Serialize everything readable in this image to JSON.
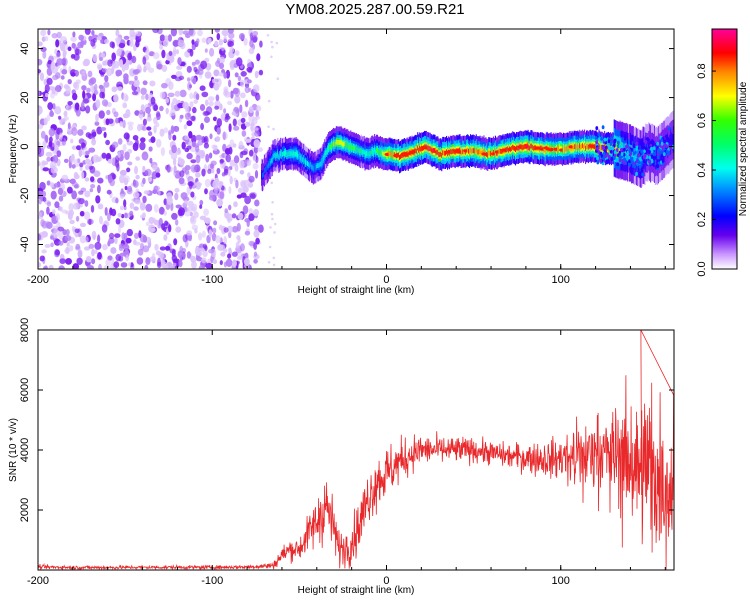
{
  "title": "YM08.2025.287.00.59.R21",
  "chart_data": [
    {
      "type": "heatmap",
      "xlabel": "Height of straight line (km)",
      "ylabel": "Frequency (Hz)",
      "xlim": [
        -200,
        165
      ],
      "ylim": [
        -50,
        48
      ],
      "xticks": [
        -200,
        -100,
        0,
        100
      ],
      "yticks": [
        -40,
        -20,
        0,
        20,
        40
      ],
      "xtick_labels": [
        "-200",
        "-100",
        "0",
        "100"
      ],
      "ytick_labels": [
        "-40",
        "-20",
        "0",
        "20",
        "40"
      ],
      "colorbar": {
        "label": "Normalized spectral amplitude",
        "range": [
          0,
          0.97
        ],
        "ticks": [
          0,
          0.2,
          0.4,
          0.6,
          0.8
        ],
        "tick_labels": [
          "0.0",
          "0.2",
          "0.4",
          "0.6",
          "0.8"
        ],
        "colormap": "rainbow (purple-blue-cyan-green-yellow-red-magenta)"
      },
      "noise_region_x": [
        -200,
        -72
      ],
      "signal_trace": {
        "x": [
          -72,
          -65,
          -58,
          -52,
          -47,
          -42,
          -38,
          -33,
          -28,
          -22,
          -18,
          -12,
          -6,
          0,
          8,
          15,
          22,
          30,
          40,
          50,
          60,
          70,
          80,
          90,
          100,
          110,
          120,
          130,
          138,
          145,
          150,
          155,
          160,
          165
        ],
        "frequency": [
          -12,
          -4,
          -3,
          -3,
          -6,
          -9,
          -7,
          0,
          2,
          0,
          -1,
          -3,
          -2,
          -3,
          -4,
          -2,
          0,
          -3,
          -2,
          -2,
          -3,
          -1,
          0,
          -1,
          -1,
          0,
          0,
          -1,
          -2,
          -5,
          -2,
          -4,
          0,
          3
        ],
        "amplitude": [
          0.3,
          0.45,
          0.5,
          0.5,
          0.45,
          0.4,
          0.45,
          0.55,
          0.7,
          0.6,
          0.55,
          0.5,
          0.55,
          0.75,
          0.85,
          0.85,
          0.9,
          0.85,
          0.85,
          0.8,
          0.8,
          0.85,
          0.9,
          0.8,
          0.75,
          0.8,
          0.85,
          0.8,
          0.5,
          0.45,
          0.35,
          0.35,
          0.3,
          0.3
        ]
      }
    },
    {
      "type": "line",
      "series_name": "SNR",
      "color": "#e8282a",
      "xlabel": "Height of straight line (km)",
      "ylabel": "SNR (10 * v/v)",
      "xlim": [
        -200,
        165
      ],
      "ylim": [
        0,
        8000
      ],
      "xticks": [
        -200,
        -100,
        0,
        100
      ],
      "yticks": [
        2000,
        4000,
        6000,
        8000
      ],
      "xtick_labels": [
        "-200",
        "-100",
        "0",
        "100"
      ],
      "ytick_labels": [
        "2000",
        "4000",
        "6000",
        "8000"
      ],
      "envelope": {
        "x": [
          -200,
          -170,
          -140,
          -100,
          -80,
          -65,
          -60,
          -55,
          -50,
          -45,
          -40,
          -35,
          -30,
          -28,
          -25,
          -20,
          -15,
          -10,
          -5,
          0,
          5,
          10,
          15,
          20,
          30,
          40,
          50,
          60,
          70,
          80,
          90,
          100,
          110,
          115,
          120,
          125,
          130,
          135,
          140,
          145,
          150,
          155,
          160,
          165
        ],
        "mean": [
          100,
          80,
          90,
          90,
          100,
          150,
          500,
          700,
          700,
          1200,
          1600,
          2200,
          1400,
          800,
          700,
          900,
          1600,
          2500,
          3000,
          3200,
          3500,
          3700,
          3900,
          4000,
          4000,
          4000,
          4000,
          3900,
          3800,
          3750,
          3700,
          3700,
          3800,
          3800,
          3900,
          3900,
          3800,
          3800,
          3700,
          3500,
          3300,
          3200,
          3000,
          2900
        ],
        "spread": [
          70,
          60,
          60,
          60,
          60,
          120,
          300,
          350,
          400,
          600,
          900,
          1200,
          800,
          600,
          600,
          700,
          900,
          900,
          900,
          900,
          800,
          700,
          600,
          500,
          450,
          450,
          400,
          400,
          400,
          500,
          600,
          700,
          900,
          1100,
          1200,
          1400,
          1700,
          1900,
          2100,
          2300,
          2500,
          2700,
          2800,
          2900
        ]
      },
      "peak": {
        "x": 146,
        "y": 8000
      }
    }
  ]
}
